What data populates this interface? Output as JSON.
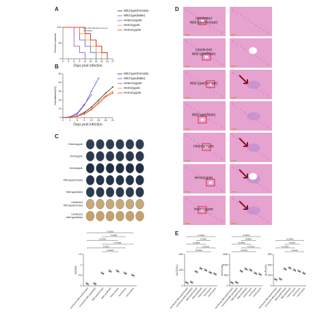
{
  "panel_labels": [
    "A",
    "B",
    "C",
    "D",
    "E"
  ],
  "brain_rows": [
    [
      "Heterozygote"
    ],
    [
      "Hemizygote"
    ],
    [
      "Homozygote"
    ],
    [
      "Wild type(Female)"
    ],
    [
      "Wild type(Male)"
    ],
    [
      "Uninfected",
      "Wild type(Female)"
    ],
    [
      "Uninfected",
      "Wild type(Male)"
    ]
  ],
  "histology_rows": [
    [
      "Uninfected",
      "Wild type(Female)"
    ],
    [
      "Uninfected",
      "Wild type(Male)"
    ],
    [
      "Wild type(Female)"
    ],
    [
      "Wild type(Male)"
    ],
    [
      "Heterozygote"
    ],
    [
      "Hemizygote"
    ],
    [
      "Homozygote"
    ]
  ],
  "chart_data": [
    {
      "type": "step",
      "xlabel": "Days post infection",
      "ylabel": "Percent survival",
      "annotations": [
        "Log-rank (Mantel-Cox) test",
        "P<0.0001"
      ],
      "xlim": [
        0,
        27
      ],
      "xticks": [
        0,
        3,
        6,
        9,
        12,
        15,
        18,
        21,
        24,
        27
      ],
      "ylim": [
        0,
        100
      ],
      "yticks": [
        0,
        50,
        100
      ],
      "series": [
        {
          "name": "Wild type(Female)",
          "color": "#222222",
          "x": [
            0,
            12,
            15,
            18,
            21,
            24
          ],
          "values": [
            100,
            80,
            60,
            40,
            20,
            0
          ]
        },
        {
          "name": "Wild type(Male)",
          "color": "#3b5bd6",
          "x": [
            0,
            9,
            12,
            15,
            18
          ],
          "values": [
            100,
            60,
            40,
            20,
            0
          ]
        },
        {
          "name": "Heterozygote",
          "color": "#9b3fc9",
          "x": [
            0,
            6,
            9,
            12
          ],
          "values": [
            100,
            40,
            20,
            0
          ]
        },
        {
          "name": "Hemizygote",
          "color": "#f08a24",
          "x": [
            0,
            9,
            12,
            15,
            18,
            21
          ],
          "values": [
            100,
            80,
            60,
            40,
            20,
            0
          ]
        },
        {
          "name": "Homozygote",
          "color": "#e0302a",
          "x": [
            0,
            12,
            15,
            18,
            21,
            24
          ],
          "values": [
            100,
            80,
            60,
            40,
            20,
            0
          ]
        }
      ]
    },
    {
      "type": "line",
      "xlabel": "Days post infection",
      "ylabel": "Parasitemia(%)",
      "xlim": [
        0,
        21
      ],
      "xticks": [
        0,
        3,
        6,
        9,
        12,
        15,
        18,
        21
      ],
      "ylim": [
        0,
        50
      ],
      "yticks": [
        0,
        10,
        20,
        30,
        40,
        50
      ],
      "series": [
        {
          "name": "Wild type(Female)",
          "color": "#222222",
          "x": [
            0,
            3,
            6,
            9,
            12,
            15,
            18,
            21
          ],
          "values": [
            0,
            0.5,
            2,
            6,
            12,
            20,
            28,
            35
          ]
        },
        {
          "name": "Wild type(Male)",
          "color": "#3b5bd6",
          "x": [
            0,
            3,
            6,
            9,
            12,
            15
          ],
          "values": [
            0,
            1,
            4,
            14,
            30,
            45
          ]
        },
        {
          "name": "Heterozygote",
          "color": "#9b3fc9",
          "x": [
            0,
            3,
            6,
            9,
            12
          ],
          "values": [
            0,
            1,
            5,
            15,
            26
          ]
        },
        {
          "name": "Hemizygote",
          "color": "#f08a24",
          "x": [
            0,
            3,
            6,
            9,
            12,
            15,
            18,
            21
          ],
          "values": [
            0,
            0.5,
            2,
            5,
            10,
            18,
            25,
            30
          ]
        },
        {
          "name": "Homozygote",
          "color": "#e0302a",
          "x": [
            0,
            3,
            6,
            9,
            12,
            15,
            18,
            21
          ],
          "values": [
            0,
            0.5,
            1.5,
            4,
            9,
            16,
            24,
            28
          ]
        }
      ]
    },
    {
      "type": "dot",
      "ylabel": "OD620",
      "ylim": [
        0,
        1.5
      ],
      "yticks": [
        0,
        0.5,
        1,
        1.5
      ],
      "p_values": [
        "<0.0001",
        "0.0006",
        "<0.0001",
        "<0.0001",
        "0.0001",
        "<0.0001"
      ],
      "categories": [
        "Uninfected Wild type(Female)",
        "Uninfected Wild type(Male)",
        "Wild type(Female)",
        "Wild type(Male)",
        "Heterozygote",
        "Hemizygote",
        "Homozygote"
      ],
      "values": [
        0.1,
        0.1,
        0.6,
        0.7,
        0.7,
        0.6,
        0.5
      ]
    },
    {
      "type": "dot",
      "ylabel": "ALT(U/L)",
      "ylim": [
        0,
        400
      ],
      "yticks": [
        0,
        200,
        400
      ],
      "p_values": [
        "<0.0001",
        "0.1046",
        "<0.0001",
        "<0.0001",
        "<0.0001"
      ],
      "categories": [
        "Uninfected Wild type(Female)",
        "Uninfected Wild type(Male)",
        "Wild type(Female)",
        "Wild type(Male)",
        "Heterozygote",
        "Hemizygote",
        "Homozygote"
      ],
      "values": [
        40,
        45,
        180,
        220,
        200,
        170,
        150
      ]
    },
    {
      "type": "dot",
      "ylabel": "AST(U/L)",
      "ylim": [
        0,
        1500
      ],
      "yticks": [
        0,
        500,
        1000,
        1500
      ],
      "p_values": [
        "<0.0001",
        "0.0663",
        "<0.0001",
        "<0.0001",
        "<0.0001"
      ],
      "categories": [
        "Uninfected Wild type(Female)",
        "Uninfected Wild type(Male)",
        "Wild type(Female)",
        "Wild type(Male)",
        "Heterozygote",
        "Hemizygote",
        "Homozygote"
      ],
      "values": [
        150,
        160,
        700,
        800,
        750,
        600,
        550
      ]
    },
    {
      "type": "dot",
      "ylabel": "ALP(U/L)",
      "ylim": [
        0,
        300
      ],
      "yticks": [
        0,
        100,
        200,
        300
      ],
      "p_values": [
        "<0.0001",
        "0.2621",
        "<0.0001",
        "0.0140"
      ],
      "categories": [
        "Uninfected Wild type(Female)",
        "Uninfected Wild type(Male)",
        "Wild type(Female)",
        "Wild type(Male)",
        "Heterozygote",
        "Hemizygote",
        "Homozygote"
      ],
      "values": [
        60,
        65,
        160,
        170,
        150,
        140,
        120
      ]
    }
  ]
}
